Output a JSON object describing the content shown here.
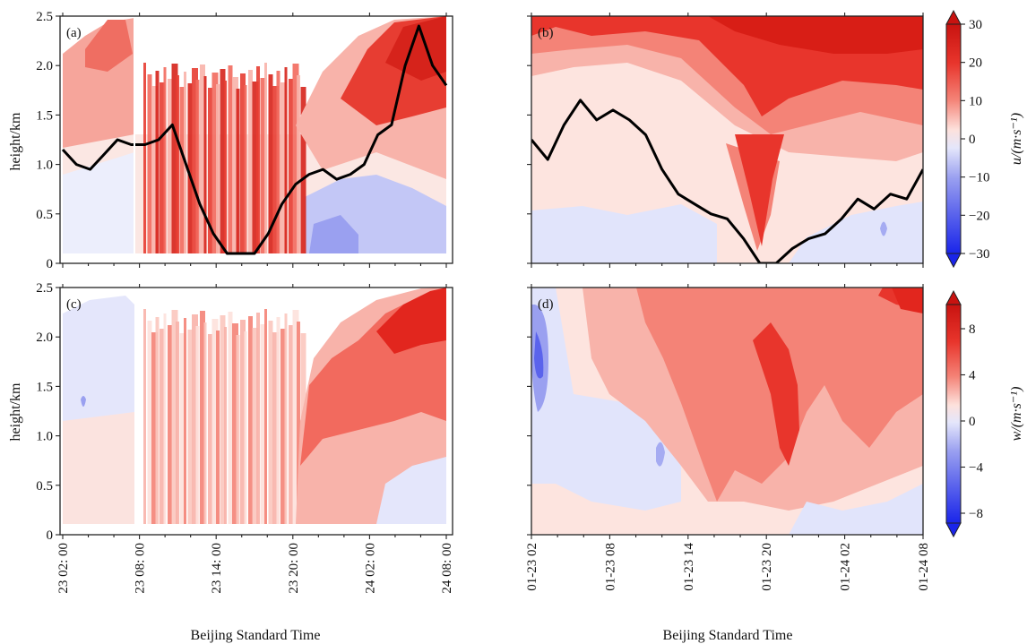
{
  "chart_data": [
    {
      "type": "heatmap",
      "panel": "(a)",
      "ylabel": "height/km",
      "xlabel": "",
      "ylim": [
        0,
        2.5
      ],
      "y_ticks": [
        "0",
        "0.5",
        "1.0",
        "1.5",
        "2.0",
        "2.5"
      ],
      "x_ticks": [
        "23 02: 00",
        "23 08: 00",
        "23 14: 00",
        "23 20: 00",
        "24 02: 00",
        "24 08: 00"
      ],
      "zero_contour_height_km": [
        1.15,
        1.0,
        0.95,
        1.1,
        1.25,
        1.2,
        1.2,
        1.25,
        1.4,
        1.0,
        0.6,
        0.3,
        0.1,
        0.1,
        0.1,
        0.3,
        0.6,
        0.8,
        0.9,
        0.95,
        0.85,
        0.9,
        1.0,
        1.3,
        1.4,
        2.0,
        2.4,
        2.0,
        1.8
      ],
      "blue_region": {
        "x_start_h": 22,
        "x_end_h": 30,
        "top_km": 0.6
      }
    },
    {
      "type": "heatmap",
      "panel": "(b)",
      "ylabel": "",
      "xlabel": "",
      "ylim": [
        0,
        2.5
      ],
      "x_ticks": [
        "01-23 02",
        "01-23 08",
        "01-23 14",
        "01-23 20",
        "01-24 02",
        "01-24 08"
      ],
      "zero_contour_height_km": [
        1.25,
        1.05,
        1.4,
        1.65,
        1.45,
        1.55,
        1.45,
        1.3,
        0.95,
        0.7,
        0.6,
        0.5,
        0.45,
        0.25,
        0.0,
        0.0,
        0.15,
        0.25,
        0.3,
        0.45,
        0.65,
        0.55,
        0.7,
        0.65,
        0.95
      ]
    },
    {
      "type": "heatmap",
      "panel": "(c)",
      "ylabel": "height/km",
      "xlabel": "Beijing Standard Time",
      "ylim": [
        0,
        2.5
      ],
      "y_ticks": [
        "0",
        "0.5",
        "1.0",
        "1.5",
        "2.0",
        "2.5"
      ],
      "x_ticks": [
        "23 02: 00",
        "23 08: 00",
        "23 14: 00",
        "23 20: 00",
        "24 02: 00",
        "24 08: 00"
      ]
    },
    {
      "type": "heatmap",
      "panel": "(d)",
      "ylabel": "",
      "xlabel": "Beijing Standard Time",
      "ylim": [
        0,
        2.5
      ],
      "x_ticks": [
        "01-23 02",
        "01-23 08",
        "01-23 14",
        "01-23 20",
        "01-24 02",
        "01-24 08"
      ]
    }
  ],
  "colorbars": [
    {
      "label": "u/(m·s⁻¹)",
      "ticks": [
        "30",
        "20",
        "10",
        "0",
        "−10",
        "−20",
        "−30"
      ],
      "range": [
        -30,
        30
      ]
    },
    {
      "label": "w/(m·s⁻¹)",
      "ticks": [
        "8",
        "4",
        "0",
        "−4",
        "−8"
      ],
      "range": [
        -10,
        10
      ]
    }
  ],
  "colors": {
    "strong_red": "#e2261e",
    "mid_red": "#f26a5e",
    "light_red": "#f8b3aa",
    "pale_red": "#fde1dc",
    "pale_blue": "#e1e4fb",
    "mid_blue": "#8088ee",
    "strong_blue": "#1a25ea",
    "contour": "#000000"
  }
}
